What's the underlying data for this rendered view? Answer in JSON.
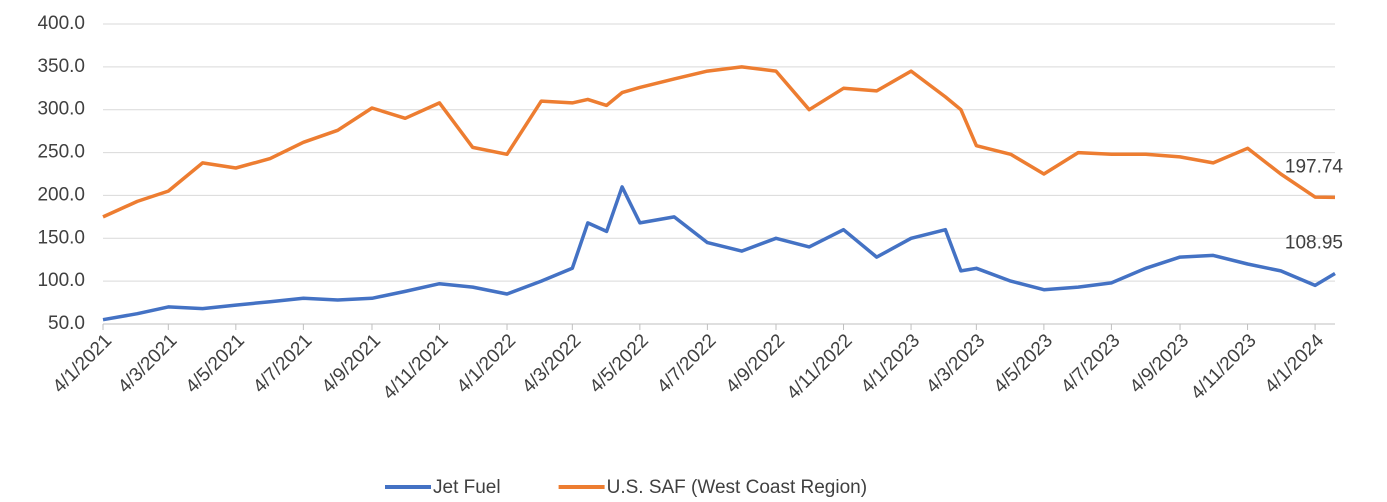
{
  "chart_data": {
    "type": "line",
    "x": [
      "2021-01-04",
      "2021-02-04",
      "2021-03-04",
      "2021-04-04",
      "2021-05-04",
      "2021-06-04",
      "2021-07-04",
      "2021-08-04",
      "2021-09-04",
      "2021-10-04",
      "2021-11-04",
      "2021-12-04",
      "2022-01-04",
      "2022-02-04",
      "2022-03-04",
      "2022-03-18",
      "2022-04-04",
      "2022-04-18",
      "2022-05-04",
      "2022-06-04",
      "2022-07-04",
      "2022-08-04",
      "2022-09-04",
      "2022-10-04",
      "2022-11-04",
      "2022-12-04",
      "2023-01-04",
      "2023-02-04",
      "2023-02-18",
      "2023-03-04",
      "2023-04-04",
      "2023-05-04",
      "2023-06-04",
      "2023-07-04",
      "2023-08-04",
      "2023-09-04",
      "2023-10-04",
      "2023-11-04",
      "2023-12-04",
      "2024-01-04",
      "2024-01-22"
    ],
    "series": [
      {
        "name": "Jet Fuel",
        "color": "#4472c4",
        "values": [
          55,
          62,
          70,
          68,
          72,
          76,
          80,
          78,
          80,
          88,
          97,
          93,
          85,
          100,
          115,
          168,
          158,
          210,
          168,
          175,
          145,
          135,
          150,
          140,
          160,
          128,
          150,
          160,
          112,
          115,
          100,
          90,
          93,
          98,
          115,
          128,
          130,
          120,
          112,
          95,
          108.95
        ]
      },
      {
        "name": "U.S. SAF (West Coast Region)",
        "color": "#ed7d31",
        "values": [
          175,
          193,
          205,
          238,
          232,
          243,
          262,
          276,
          302,
          290,
          308,
          256,
          248,
          310,
          308,
          312,
          305,
          320,
          326,
          336,
          345,
          350,
          345,
          300,
          325,
          322,
          345,
          315,
          300,
          258,
          248,
          225,
          250,
          248,
          248,
          245,
          238,
          255,
          225,
          198,
          197.74
        ]
      }
    ],
    "xlim": [
      "2021-01-04",
      "2024-01-22"
    ],
    "xticks": [
      {
        "value": "2021-01-04",
        "label": "4/1/2021"
      },
      {
        "value": "2021-03-04",
        "label": "4/3/2021"
      },
      {
        "value": "2021-05-04",
        "label": "4/5/2021"
      },
      {
        "value": "2021-07-04",
        "label": "4/7/2021"
      },
      {
        "value": "2021-09-04",
        "label": "4/9/2021"
      },
      {
        "value": "2021-11-04",
        "label": "4/11/2021"
      },
      {
        "value": "2022-01-04",
        "label": "4/1/2022"
      },
      {
        "value": "2022-03-04",
        "label": "4/3/2022"
      },
      {
        "value": "2022-05-04",
        "label": "4/5/2022"
      },
      {
        "value": "2022-07-04",
        "label": "4/7/2022"
      },
      {
        "value": "2022-09-04",
        "label": "4/9/2022"
      },
      {
        "value": "2022-11-04",
        "label": "4/11/2022"
      },
      {
        "value": "2023-01-04",
        "label": "4/1/2023"
      },
      {
        "value": "2023-03-04",
        "label": "4/3/2023"
      },
      {
        "value": "2023-05-04",
        "label": "4/5/2023"
      },
      {
        "value": "2023-07-04",
        "label": "4/7/2023"
      },
      {
        "value": "2023-09-04",
        "label": "4/9/2023"
      },
      {
        "value": "2023-11-04",
        "label": "4/11/2023"
      },
      {
        "value": "2024-01-04",
        "label": "4/1/2024"
      }
    ],
    "ylim": [
      50,
      400
    ],
    "yticks": [
      {
        "value": 50,
        "label": "50.0"
      },
      {
        "value": 100,
        "label": "100.0"
      },
      {
        "value": 150,
        "label": "150.0"
      },
      {
        "value": 200,
        "label": "200.0"
      },
      {
        "value": 250,
        "label": "250.0"
      },
      {
        "value": 300,
        "label": "300.0"
      },
      {
        "value": 350,
        "label": "350.0"
      },
      {
        "value": 400,
        "label": "400.0"
      }
    ],
    "grid": true,
    "legend": "bottom"
  }
}
